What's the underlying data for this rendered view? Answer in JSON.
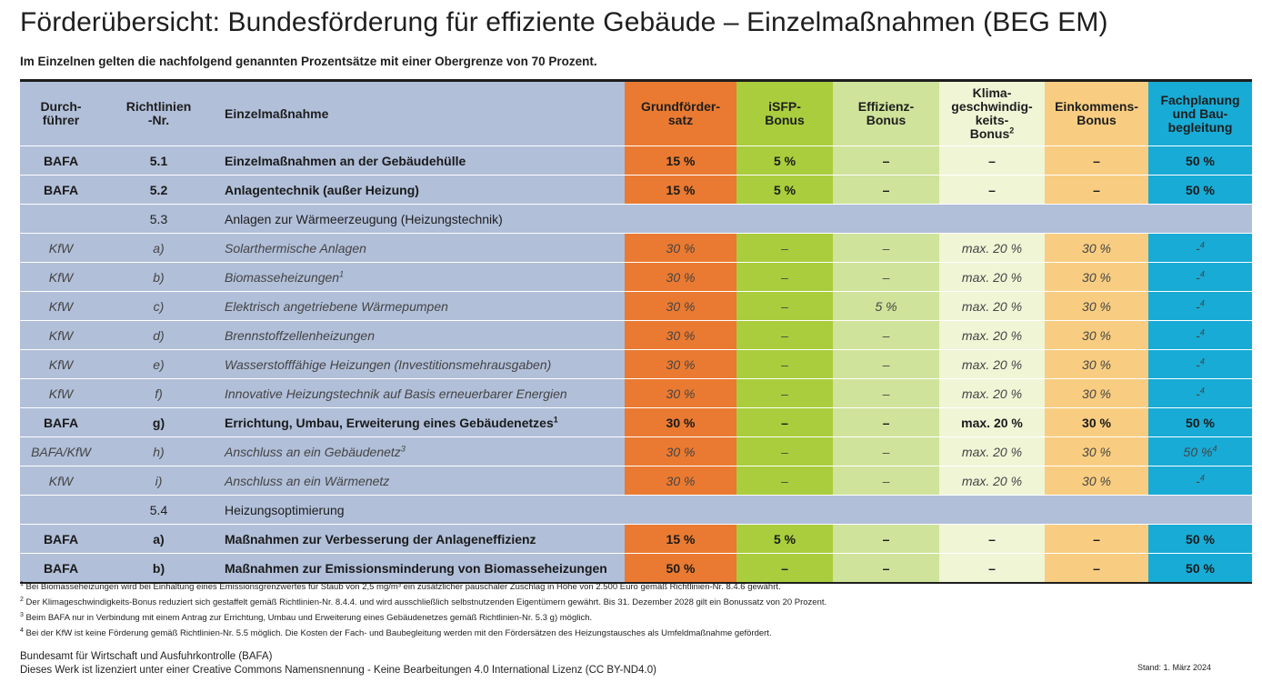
{
  "title": "Förderübersicht: Bundesförderung für effiziente Gebäude – Einzelmaßnahmen (BEG EM)",
  "subtitle": "Im Einzelnen gelten die nachfolgend genannten Prozentsätze mit einer Obergrenze von 70 Prozent.",
  "colors": {
    "header_row_bg": "#b1bfd9",
    "grundfoerdersatz": "#ea7a31",
    "isfp_bonus": "#a9cd3c",
    "effizienz_bonus": "#cfe39a",
    "klima_bonus": "#f0f5d6",
    "einkommens_bonus": "#f8cd81",
    "fachplanung": "#18abd6"
  },
  "headers": {
    "durchfuehrer_1": "Durch-",
    "durchfuehrer_2": "führer",
    "richtlinien_1": "Richtlinien",
    "richtlinien_2": "-Nr.",
    "massnahme": "Einzelmaßnahme",
    "grund_1": "Grundförder-",
    "grund_2": "satz",
    "isfp_1": "iSFP-",
    "isfp_2": "Bonus",
    "eff_1": "Effizienz-",
    "eff_2": "Bonus",
    "klima_1": "Klima-",
    "klima_2": "geschwindig-",
    "klima_3": "keits-",
    "klima_4": "Bonus",
    "klima_sup": "2",
    "eink_1": "Einkommens-",
    "eink_2": "Bonus",
    "fach_1": "Fachplanung",
    "fach_2": "und Bau-",
    "fach_3": "begleitung"
  },
  "rows": [
    {
      "durchfuehrer": "BAFA",
      "nr": "5.1",
      "massnahme": "Einzelmaßnahmen an der Gebäudehülle",
      "sup": "",
      "grund": "15 %",
      "isfp": "5 %",
      "eff": "–",
      "klima": "–",
      "eink": "–",
      "fach": "50 %",
      "fach_sup": ""
    },
    {
      "durchfuehrer": "BAFA",
      "nr": "5.2",
      "massnahme": "Anlagentechnik (außer Heizung)",
      "sup": "",
      "grund": "15 %",
      "isfp": "5 %",
      "eff": "–",
      "klima": "–",
      "eink": "–",
      "fach": "50 %",
      "fach_sup": ""
    },
    {
      "nr": "5.3",
      "massnahme": "Anlagen zur Wärmeerzeugung (Heizungstechnik)"
    },
    {
      "durchfuehrer": "KfW",
      "nr": "a)",
      "massnahme": "Solarthermische Anlagen",
      "sup": "",
      "grund": "30 %",
      "isfp": "–",
      "eff": "–",
      "klima": "max. 20 %",
      "eink": "30 %",
      "fach": "-",
      "fach_sup": "4"
    },
    {
      "durchfuehrer": "KfW",
      "nr": "b)",
      "massnahme": "Biomasseheizungen",
      "sup": "1",
      "grund": "30 %",
      "isfp": "–",
      "eff": "–",
      "klima": "max. 20 %",
      "eink": "30 %",
      "fach": "-",
      "fach_sup": "4"
    },
    {
      "durchfuehrer": "KfW",
      "nr": "c)",
      "massnahme": "Elektrisch angetriebene Wärmepumpen",
      "sup": "",
      "grund": "30 %",
      "isfp": "–",
      "eff": "5 %",
      "klima": "max. 20 %",
      "eink": "30 %",
      "fach": "-",
      "fach_sup": "4"
    },
    {
      "durchfuehrer": "KfW",
      "nr": "d)",
      "massnahme": "Brennstoffzellenheizungen",
      "sup": "",
      "grund": "30 %",
      "isfp": "–",
      "eff": "–",
      "klima": "max. 20 %",
      "eink": "30 %",
      "fach": "-",
      "fach_sup": "4"
    },
    {
      "durchfuehrer": "KfW",
      "nr": "e)",
      "massnahme": "Wasserstofffähige Heizungen (Investitionsmehrausgaben)",
      "sup": "",
      "grund": "30 %",
      "isfp": "–",
      "eff": "–",
      "klima": "max. 20 %",
      "eink": "30 %",
      "fach": "-",
      "fach_sup": "4"
    },
    {
      "durchfuehrer": "KfW",
      "nr": "f)",
      "massnahme": "Innovative Heizungstechnik auf Basis erneuerbarer Energien",
      "sup": "",
      "grund": "30 %",
      "isfp": "–",
      "eff": "–",
      "klima": "max. 20 %",
      "eink": "30 %",
      "fach": "-",
      "fach_sup": "4"
    },
    {
      "durchfuehrer": "BAFA",
      "nr": "g)",
      "massnahme": "Errichtung, Umbau, Erweiterung eines Gebäudenetzes",
      "sup": "1",
      "grund": "30 %",
      "isfp": "–",
      "eff": "–",
      "klima": "max. 20 %",
      "eink": "30 %",
      "fach": "50 %",
      "fach_sup": ""
    },
    {
      "durchfuehrer": "BAFA/KfW",
      "nr": "h)",
      "massnahme": "Anschluss an ein Gebäudenetz",
      "sup": "3",
      "grund": "30 %",
      "isfp": "–",
      "eff": "–",
      "klima": "max. 20 %",
      "eink": "30 %",
      "fach": "50 %",
      "fach_sup": "4"
    },
    {
      "durchfuehrer": "KfW",
      "nr": "i)",
      "massnahme": "Anschluss an ein Wärmenetz",
      "sup": "",
      "grund": "30 %",
      "isfp": "–",
      "eff": "–",
      "klima": "max. 20 %",
      "eink": "30 %",
      "fach": "-",
      "fach_sup": "4"
    },
    {
      "nr": "5.4",
      "massnahme": "Heizungsoptimierung"
    },
    {
      "durchfuehrer": "BAFA",
      "nr": "a)",
      "massnahme": "Maßnahmen zur Verbesserung der Anlageneffizienz",
      "sup": "",
      "grund": "15 %",
      "isfp": "5 %",
      "eff": "–",
      "klima": "–",
      "eink": "–",
      "fach": "50 %",
      "fach_sup": ""
    },
    {
      "durchfuehrer": "BAFA",
      "nr": "b)",
      "massnahme": "Maßnahmen zur Emissionsminderung von Biomasseheizungen",
      "sup": "",
      "grund": "50 %",
      "isfp": "–",
      "eff": "–",
      "klima": "–",
      "eink": "–",
      "fach": "50 %",
      "fach_sup": ""
    }
  ],
  "footnotes": [
    {
      "num": "1",
      "text": "Bei Biomasseheizungen wird bei Einhaltung eines Emissionsgrenzwertes für Staub von 2,5 mg/m³ ein zusätzlicher pauschaler Zuschlag in Höhe von 2.500 Euro gemäß Richtlinien-Nr. 8.4.6 gewährt."
    },
    {
      "num": "2",
      "text": "Der Klimageschwindigkeits-Bonus reduziert sich gestaffelt gemäß Richtlinien-Nr. 8.4.4. und wird ausschließlich selbstnutzenden Eigentümern gewährt. Bis 31. Dezember 2028 gilt ein Bonussatz von 20 Prozent."
    },
    {
      "num": "3",
      "text": "Beim BAFA nur in Verbindung mit einem Antrag zur Errichtung, Umbau und Erweiterung eines Gebäudenetzes gemäß Richtlinien-Nr. 5.3 g) möglich."
    },
    {
      "num": "4",
      "text": "Bei der KfW ist keine Förderung gemäß Richtlinien-Nr. 5.5 möglich. Die Kosten der Fach- und Baubegleitung werden mit den Fördersätzen des Heizungstausches als Umfeldmaßnahme gefördert."
    }
  ],
  "org_line1": "Bundesamt für Wirtschaft und Ausfuhrkontrolle (BAFA)",
  "org_line2": "Dieses Werk ist lizenziert unter einer Creative Commons Namensnennung - Keine Bearbeitungen 4.0 International Lizenz (CC BY-ND4.0)",
  "stand": "Stand: 1. März 2024"
}
